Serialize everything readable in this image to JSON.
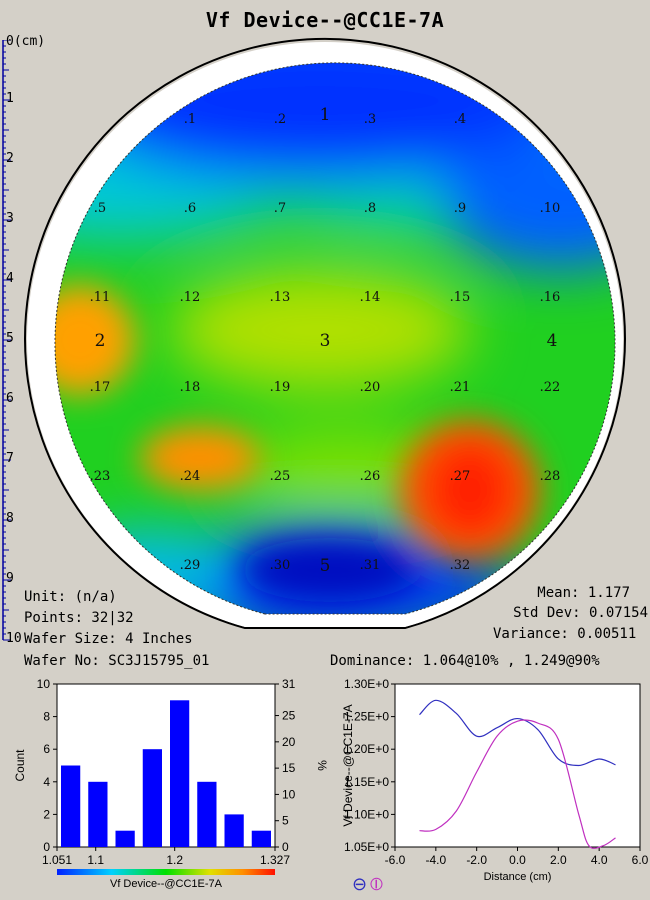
{
  "title": "Vf Device--@CC1E-7A",
  "ruler": {
    "unit_label": "0(cm)",
    "ticks": [
      "1",
      "2",
      "3",
      "4",
      "5",
      "6",
      "7",
      "8",
      "9",
      "10"
    ]
  },
  "wafer_map": {
    "sites": [
      {
        "label": ".1"
      },
      {
        "label": ".2"
      },
      {
        "label": "1"
      },
      {
        "label": ".3"
      },
      {
        "label": ".4"
      },
      {
        "label": ".5"
      },
      {
        "label": ".6"
      },
      {
        "label": ".7"
      },
      {
        "label": ".8"
      },
      {
        "label": ".9"
      },
      {
        "label": ".10"
      },
      {
        "label": ".11"
      },
      {
        "label": ".12"
      },
      {
        "label": ".13"
      },
      {
        "label": ".14"
      },
      {
        "label": ".15"
      },
      {
        "label": ".16"
      },
      {
        "label": "2"
      },
      {
        "label": "3"
      },
      {
        "label": "4"
      },
      {
        "label": ".17"
      },
      {
        "label": ".18"
      },
      {
        "label": ".19"
      },
      {
        "label": ".20"
      },
      {
        "label": ".21"
      },
      {
        "label": ".22"
      },
      {
        "label": ".23"
      },
      {
        "label": ".24"
      },
      {
        "label": ".25"
      },
      {
        "label": ".26"
      },
      {
        "label": ".27"
      },
      {
        "label": ".28"
      },
      {
        "label": ".29"
      },
      {
        "label": ".30"
      },
      {
        "label": "5"
      },
      {
        "label": ".31"
      },
      {
        "label": ".32"
      }
    ],
    "colors": {
      "low": "#0020ff",
      "mid": "#00e000",
      "high": "#ff1000"
    }
  },
  "info": {
    "unit": "Unit: (n/a)",
    "points": "Points: 32|32",
    "wafer_size": "Wafer Size: 4 Inches",
    "wafer_no": "Wafer No: SC3J15795_01"
  },
  "stats": {
    "mean": "Mean: 1.177",
    "std_dev": "Std Dev: 0.07154",
    "variance": "Variance: 0.00511",
    "dominance": "Dominance: 1.064@10% , 1.249@90%"
  },
  "chart_data": [
    {
      "type": "bar",
      "x_ticks": [
        "1.051",
        "1.1",
        "1.2",
        "1.327"
      ],
      "values": [
        5,
        4,
        1,
        6,
        9,
        4,
        2,
        1
      ],
      "xlim": [
        1.051,
        1.327
      ],
      "ylim": [
        0,
        10
      ],
      "y_ticks": [
        "0",
        "2",
        "4",
        "6",
        "8",
        "10"
      ],
      "y2_ticks": [
        "0",
        "5",
        "10",
        "15",
        "20",
        "25",
        "31"
      ],
      "ylabel": "Count",
      "y2label": "%",
      "xlabel": "Vf Device--@CC1E-7A",
      "bar_color": "#0000ff"
    },
    {
      "type": "line",
      "xlabel": "Distance (cm)",
      "ylabel": "Vf Device--@CC1E-7A",
      "xlim": [
        -6,
        6
      ],
      "ylim": [
        1.05,
        1.3
      ],
      "x_ticks": [
        "-6.0",
        "-4.0",
        "-2.0",
        "0.0",
        "2.0",
        "4.0",
        "6.0"
      ],
      "y_ticks": [
        "1.05E+0",
        "1.10E+0",
        "1.15E+0",
        "1.20E+0",
        "1.25E+0",
        "1.30E+0"
      ],
      "series": [
        {
          "color": "#3030c0",
          "x": [
            -4.8,
            -4.0,
            -3.0,
            -2.0,
            -1.0,
            0.0,
            1.0,
            2.0,
            3.0,
            4.0,
            4.8
          ],
          "y": [
            1.253,
            1.275,
            1.255,
            1.22,
            1.233,
            1.247,
            1.23,
            1.185,
            1.175,
            1.185,
            1.176
          ]
        },
        {
          "color": "#c030c0",
          "x": [
            -4.8,
            -4.0,
            -3.0,
            -2.0,
            -1.0,
            0.0,
            1.0,
            2.0,
            3.0,
            3.5,
            4.2,
            4.8
          ],
          "y": [
            1.075,
            1.077,
            1.105,
            1.165,
            1.22,
            1.243,
            1.24,
            1.215,
            1.1,
            1.052,
            1.052,
            1.064
          ]
        }
      ],
      "legend_symbols": [
        "⊖",
        "⦶"
      ]
    }
  ]
}
